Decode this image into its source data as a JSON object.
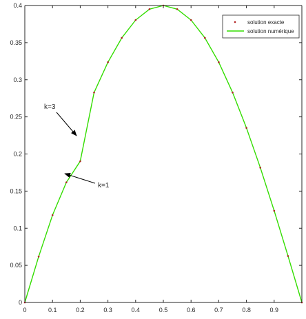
{
  "chart_data": {
    "type": "line",
    "title": "",
    "xlabel": "",
    "ylabel": "",
    "xlim": [
      0,
      1
    ],
    "ylim": [
      0,
      0.4
    ],
    "xticks": [
      0,
      0.1,
      0.2,
      0.3,
      0.4,
      0.5,
      0.6,
      0.7,
      0.8,
      0.9
    ],
    "yticks": [
      0,
      0.05,
      0.1,
      0.15,
      0.2,
      0.25,
      0.3,
      0.35,
      0.4
    ],
    "xtick_labels": [
      "0",
      "0.1",
      "0.2",
      "0.3",
      "0.4",
      "0.5",
      "0.6",
      "0.7",
      "0.8",
      "0.9"
    ],
    "ytick_labels": [
      "0",
      "0.05",
      "0.1",
      "0.15",
      "0.2",
      "0.25",
      "0.3",
      "0.35",
      "0.4"
    ],
    "grid": false,
    "legend_position": "top-right",
    "x": [
      0,
      0.05,
      0.1,
      0.15,
      0.2,
      0.25,
      0.3,
      0.35,
      0.4,
      0.45,
      0.5,
      0.55,
      0.6,
      0.65,
      0.7,
      0.75,
      0.8,
      0.85,
      0.9,
      0.95,
      1
    ],
    "series": [
      {
        "name": "solution exacte",
        "style": "dotted-markers",
        "color": "#b22222",
        "values": [
          0,
          0.0618,
          0.1176,
          0.1618,
          0.1902,
          0.2828,
          0.3236,
          0.3564,
          0.3804,
          0.3951,
          0.4,
          0.3951,
          0.3804,
          0.3564,
          0.3236,
          0.2828,
          0.2351,
          0.1816,
          0.1236,
          0.0626,
          0
        ]
      },
      {
        "name": "solution numérique",
        "style": "solid",
        "color": "#33dd00",
        "values": [
          0,
          0.0618,
          0.1176,
          0.1618,
          0.1902,
          0.2828,
          0.3236,
          0.3564,
          0.3804,
          0.3951,
          0.4,
          0.3951,
          0.3804,
          0.3564,
          0.3236,
          0.2828,
          0.2351,
          0.1816,
          0.1236,
          0.0626,
          0
        ]
      }
    ],
    "annotations": [
      {
        "text": "k=3",
        "arrow_to": [
          0.19,
          0.222
        ]
      },
      {
        "text": "k=1",
        "arrow_to": [
          0.14,
          0.175
        ]
      }
    ]
  }
}
